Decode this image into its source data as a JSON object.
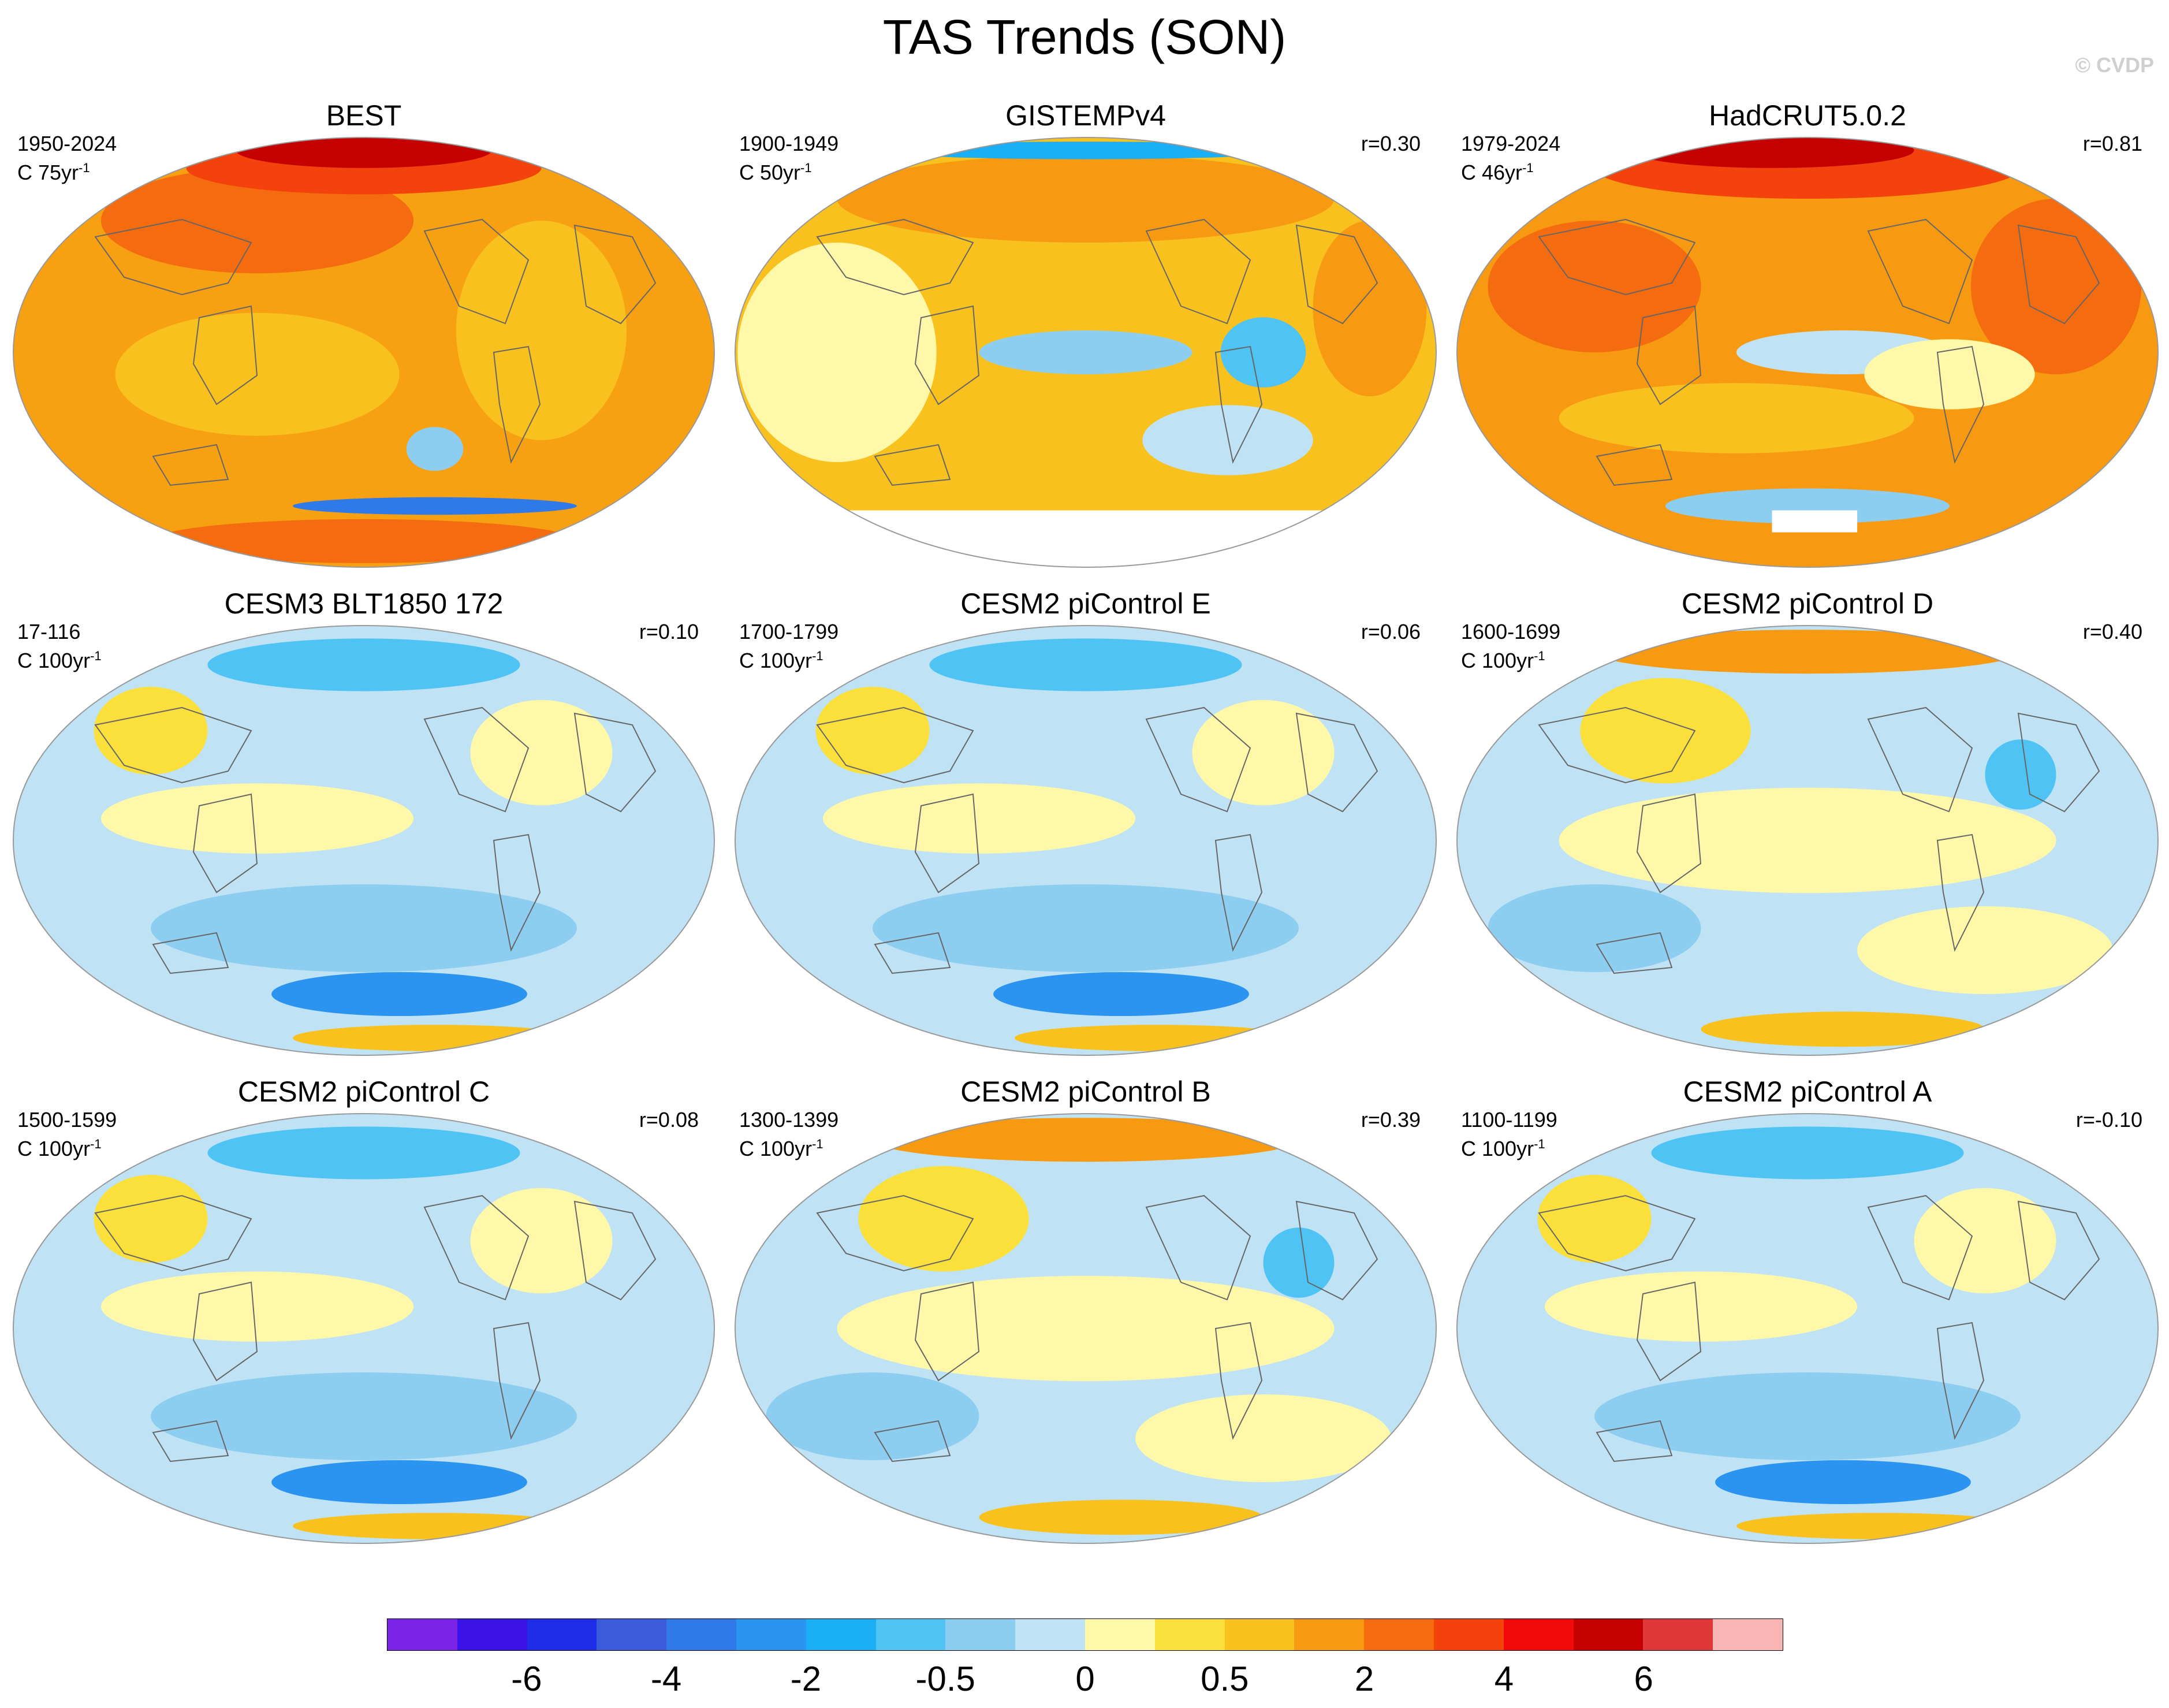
{
  "chart_data": {
    "type": "heatmap",
    "title": "TAS Trends (SON)",
    "watermark": "© CVDP",
    "projection": "Robinson-style global maps",
    "panels": [
      {
        "title": "BEST",
        "period": "1950-2024",
        "units_prefix": "C 75yr",
        "units_exp": "-1",
        "corr": "",
        "pattern": "warm",
        "missing": []
      },
      {
        "title": "GISTEMPv4",
        "period": "1900-1949",
        "units_prefix": "C 50yr",
        "units_exp": "-1",
        "corr": "r=0.30",
        "pattern": "mixed-warm",
        "missing": [
          "antarctica"
        ]
      },
      {
        "title": "HadCRUT5.0.2",
        "period": "1979-2024",
        "units_prefix": "C 46yr",
        "units_exp": "-1",
        "corr": "r=0.81",
        "pattern": "warm-strong",
        "missing": [
          "south-pacific-patch"
        ]
      },
      {
        "title": "CESM3 BLT1850 172",
        "period": "17-116",
        "units_prefix": "C 100yr",
        "units_exp": "-1",
        "corr": "r=0.10",
        "pattern": "cool",
        "missing": []
      },
      {
        "title": "CESM2 piControl E",
        "period": "1700-1799",
        "units_prefix": "C 100yr",
        "units_exp": "-1",
        "corr": "r=0.06",
        "pattern": "cool",
        "missing": []
      },
      {
        "title": "CESM2 piControl D",
        "period": "1600-1699",
        "units_prefix": "C 100yr",
        "units_exp": "-1",
        "corr": "r=0.40",
        "pattern": "neutral",
        "missing": []
      },
      {
        "title": "CESM2 piControl C",
        "period": "1500-1599",
        "units_prefix": "C 100yr",
        "units_exp": "-1",
        "corr": "r=0.08",
        "pattern": "cool",
        "missing": []
      },
      {
        "title": "CESM2 piControl B",
        "period": "1300-1399",
        "units_prefix": "C 100yr",
        "units_exp": "-1",
        "corr": "r=0.39",
        "pattern": "neutral",
        "missing": []
      },
      {
        "title": "CESM2 piControl A",
        "period": "1100-1199",
        "units_prefix": "C 100yr",
        "units_exp": "-1",
        "corr": "r=-0.10",
        "pattern": "cool",
        "missing": []
      }
    ],
    "colorbar": {
      "colors": [
        "#7b24e8",
        "#3b12e8",
        "#1f2de8",
        "#3b5bdc",
        "#2f7ae8",
        "#2b93f0",
        "#1aaef5",
        "#4fc3f3",
        "#8dcdef",
        "#bfe3f5",
        "#fff8a8",
        "#fbe03c",
        "#f9c11e",
        "#f79a12",
        "#f56b0f",
        "#f3420c",
        "#f20a0a",
        "#c50000",
        "#e03838",
        "#f9b4b4"
      ],
      "labels": [
        "-6",
        "-4",
        "-2",
        "-0.5",
        "0",
        "0.5",
        "2",
        "4",
        "6"
      ],
      "label_boundaries": [
        2,
        4,
        6,
        8,
        10,
        12,
        14,
        16,
        18
      ]
    }
  }
}
